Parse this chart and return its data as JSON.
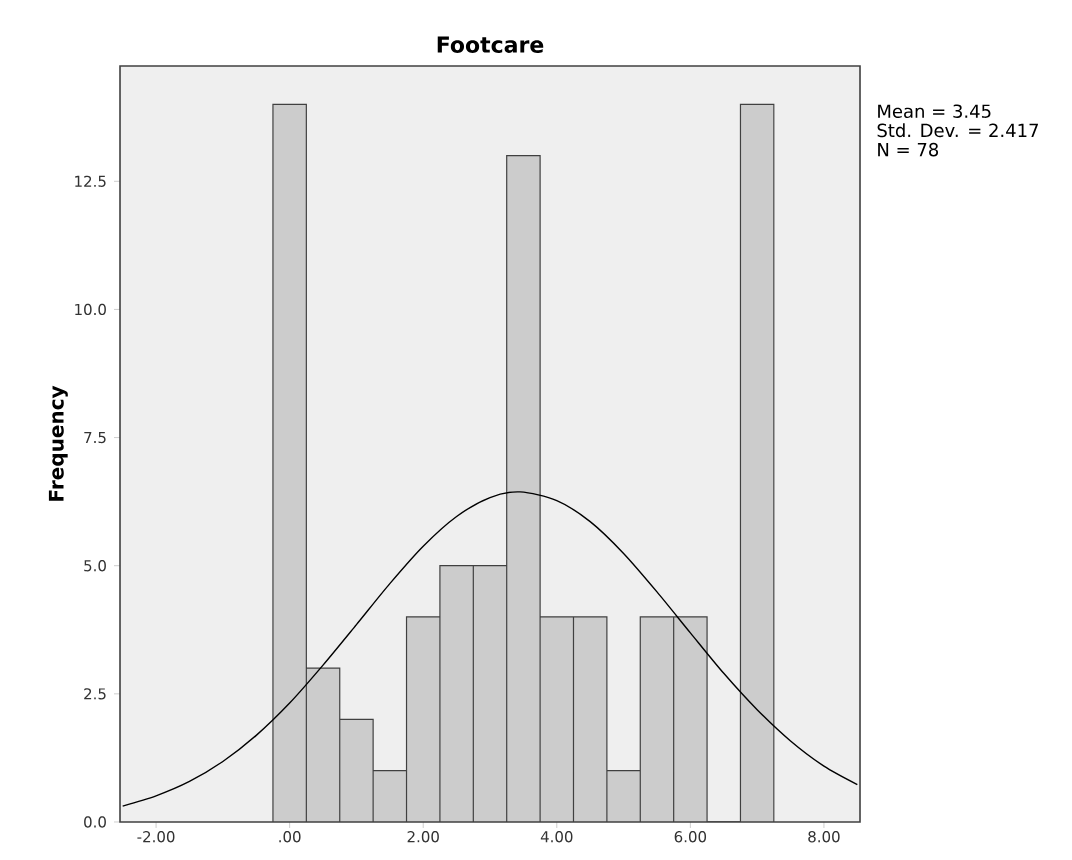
{
  "chart_data": {
    "type": "histogram",
    "title": "Footcare",
    "ylabel": "Frequency",
    "series": [
      {
        "color": "#cccccc",
        "bins": [
          -0.25,
          0.25,
          0.75,
          1.25,
          1.75,
          2.25,
          2.75,
          3.25,
          3.75,
          4.25,
          4.75,
          5.25,
          5.75,
          6.25,
          6.75,
          7.25
        ],
        "values": [
          14,
          3,
          2,
          1,
          4,
          5,
          5,
          13,
          4,
          4,
          1,
          4,
          4,
          0,
          14
        ]
      },
      {
        "type": "line",
        "color": "#000000",
        "x": [
          -2.5,
          -2,
          -1.5,
          -1,
          -0.5,
          0,
          0.5,
          1,
          1.5,
          2,
          2.5,
          3,
          3.45,
          4,
          4.5,
          5,
          5.5,
          6,
          6.5,
          7,
          7.5,
          8,
          8.5
        ],
        "values": [
          0.31,
          0.51,
          0.79,
          1.18,
          1.69,
          2.32,
          3.06,
          3.85,
          4.65,
          5.38,
          5.96,
          6.33,
          6.44,
          6.27,
          5.86,
          5.24,
          4.49,
          3.69,
          2.9,
          2.19,
          1.58,
          1.09,
          0.73
        ]
      }
    ],
    "xlim": [
      -2.54,
      8.54
    ],
    "ylim": [
      0,
      14.75
    ],
    "xticks": [
      {
        "value": -2,
        "label": "-2.00"
      },
      {
        "value": 0,
        "label": ".00"
      },
      {
        "value": 2,
        "label": "2.00"
      },
      {
        "value": 4,
        "label": "4.00"
      },
      {
        "value": 6,
        "label": "6.00"
      },
      {
        "value": 8,
        "label": "8.00"
      }
    ],
    "yticks": [
      {
        "value": 0,
        "label": "0.0"
      },
      {
        "value": 2.5,
        "label": "2.5"
      },
      {
        "value": 5,
        "label": "5.0"
      },
      {
        "value": 7.5,
        "label": "7.5"
      },
      {
        "value": 10,
        "label": "10.0"
      },
      {
        "value": 12.5,
        "label": "12.5"
      }
    ],
    "annotations": [
      "Mean = 3.45",
      "Std. Dev. = 2.417",
      "N = 78"
    ]
  }
}
